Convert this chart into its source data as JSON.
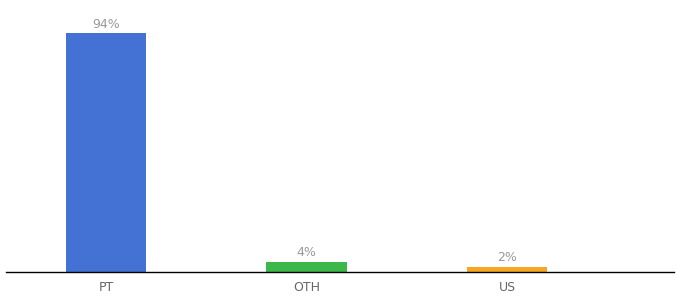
{
  "categories": [
    "PT",
    "OTH",
    "US"
  ],
  "values": [
    94,
    4,
    2
  ],
  "bar_colors": [
    "#4472d4",
    "#3cb84a",
    "#f5a623"
  ],
  "label_texts": [
    "94%",
    "4%",
    "2%"
  ],
  "background_color": "#ffffff",
  "ylim": [
    0,
    105
  ],
  "xlim": [
    -0.5,
    9.5
  ],
  "bar_positions": [
    1,
    4,
    7
  ],
  "bar_width": 1.2,
  "label_fontsize": 9,
  "tick_fontsize": 9,
  "label_color": "#999999",
  "tick_color": "#666666"
}
